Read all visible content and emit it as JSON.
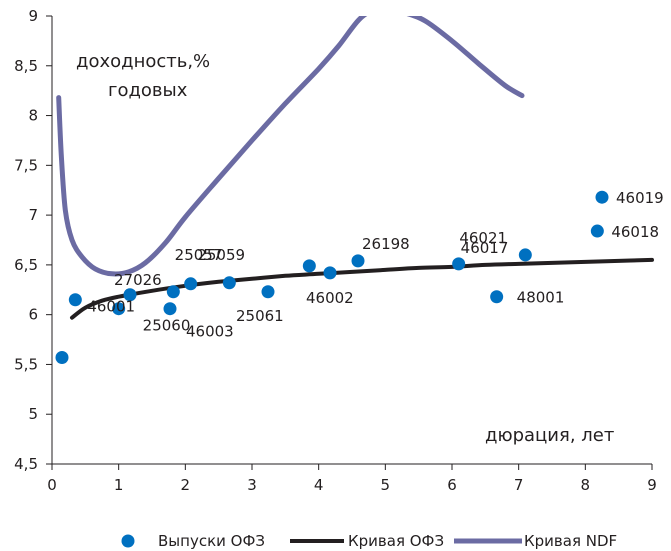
{
  "chart_data": {
    "type": "scatter",
    "xlim": [
      0,
      9
    ],
    "ylim": [
      4.5,
      9
    ],
    "x_ticks": [
      0,
      1,
      2,
      3,
      4,
      5,
      6,
      7,
      8,
      9
    ],
    "y_ticks": [
      4.5,
      5,
      5.5,
      6,
      6.5,
      7,
      7.5,
      8,
      8.5,
      9
    ],
    "y_tick_labels": [
      "4,5",
      "5",
      "5,5",
      "6",
      "6,5",
      "7",
      "7,5",
      "8",
      "8,5",
      "9"
    ],
    "grid": false,
    "legend_position": "bottom",
    "annotations": {
      "ylabel_line1": "доходность,%",
      "ylabel_line2": "годовых",
      "xlabel": "дюрация, лет"
    },
    "series": [
      {
        "name": "Выпуски ОФЗ",
        "kind": "scatter",
        "color": "#0070c0",
        "points": [
          {
            "x": 0.15,
            "y": 5.57,
            "label": ""
          },
          {
            "x": 0.35,
            "y": 6.15,
            "label": "46001"
          },
          {
            "x": 1.0,
            "y": 6.06,
            "label": "25060"
          },
          {
            "x": 1.17,
            "y": 6.2,
            "label": "27026"
          },
          {
            "x": 1.77,
            "y": 6.06,
            "label": "46003"
          },
          {
            "x": 1.82,
            "y": 6.23,
            "label": ""
          },
          {
            "x": 2.08,
            "y": 6.31,
            "label": "25057"
          },
          {
            "x": 2.66,
            "y": 6.32,
            "label": "25059"
          },
          {
            "x": 3.24,
            "y": 6.23,
            "label": "25061"
          },
          {
            "x": 3.86,
            "y": 6.49,
            "label": ""
          },
          {
            "x": 4.17,
            "y": 6.42,
            "label": "46002"
          },
          {
            "x": 4.59,
            "y": 6.54,
            "label": "26198"
          },
          {
            "x": 6.1,
            "y": 6.51,
            "label": "46017"
          },
          {
            "x": 6.67,
            "y": 6.18,
            "label": "48001"
          },
          {
            "x": 7.1,
            "y": 6.6,
            "label": "46021"
          },
          {
            "x": 8.18,
            "y": 6.84,
            "label": "46018"
          },
          {
            "x": 8.25,
            "y": 7.18,
            "label": "46019"
          }
        ]
      },
      {
        "name": "Кривая ОФЗ",
        "kind": "line",
        "color": "#231f20",
        "points": [
          {
            "x": 0.3,
            "y": 5.97
          },
          {
            "x": 0.5,
            "y": 6.07
          },
          {
            "x": 0.75,
            "y": 6.14
          },
          {
            "x": 1.0,
            "y": 6.18
          },
          {
            "x": 1.5,
            "y": 6.24
          },
          {
            "x": 2.0,
            "y": 6.29
          },
          {
            "x": 2.5,
            "y": 6.33
          },
          {
            "x": 3.0,
            "y": 6.36
          },
          {
            "x": 3.5,
            "y": 6.39
          },
          {
            "x": 4.0,
            "y": 6.41
          },
          {
            "x": 4.5,
            "y": 6.43
          },
          {
            "x": 5.0,
            "y": 6.45
          },
          {
            "x": 5.5,
            "y": 6.47
          },
          {
            "x": 6.0,
            "y": 6.48
          },
          {
            "x": 6.5,
            "y": 6.5
          },
          {
            "x": 7.0,
            "y": 6.51
          },
          {
            "x": 7.5,
            "y": 6.52
          },
          {
            "x": 8.0,
            "y": 6.53
          },
          {
            "x": 8.5,
            "y": 6.54
          },
          {
            "x": 9.0,
            "y": 6.55
          }
        ]
      },
      {
        "name": "Кривая NDF",
        "kind": "line",
        "color": "#6b6ba3",
        "points": [
          {
            "x": 0.1,
            "y": 8.18
          },
          {
            "x": 0.14,
            "y": 7.6
          },
          {
            "x": 0.2,
            "y": 7.05
          },
          {
            "x": 0.3,
            "y": 6.75
          },
          {
            "x": 0.45,
            "y": 6.58
          },
          {
            "x": 0.65,
            "y": 6.46
          },
          {
            "x": 0.9,
            "y": 6.41
          },
          {
            "x": 1.15,
            "y": 6.43
          },
          {
            "x": 1.4,
            "y": 6.52
          },
          {
            "x": 1.7,
            "y": 6.72
          },
          {
            "x": 2.0,
            "y": 6.98
          },
          {
            "x": 2.5,
            "y": 7.37
          },
          {
            "x": 3.0,
            "y": 7.75
          },
          {
            "x": 3.5,
            "y": 8.12
          },
          {
            "x": 4.0,
            "y": 8.47
          },
          {
            "x": 4.3,
            "y": 8.7
          },
          {
            "x": 4.6,
            "y": 8.96
          },
          {
            "x": 4.8,
            "y": 9.05
          },
          {
            "x": 5.0,
            "y": 9.07
          },
          {
            "x": 5.3,
            "y": 9.03
          },
          {
            "x": 5.6,
            "y": 8.95
          },
          {
            "x": 6.0,
            "y": 8.75
          },
          {
            "x": 6.4,
            "y": 8.52
          },
          {
            "x": 6.8,
            "y": 8.3
          },
          {
            "x": 7.05,
            "y": 8.2
          }
        ]
      }
    ]
  }
}
